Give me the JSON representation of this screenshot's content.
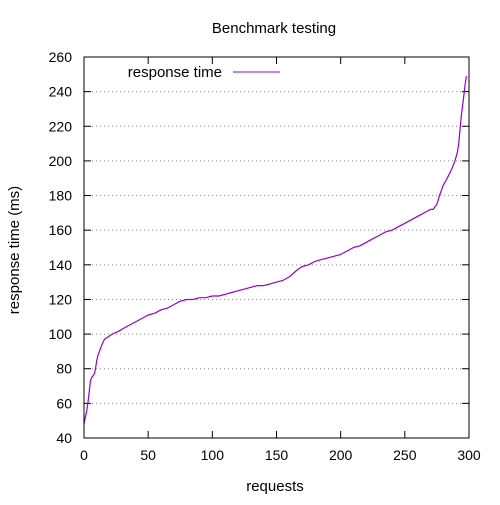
{
  "chart_data": {
    "type": "line",
    "title": "Benchmark testing",
    "xlabel": "requests",
    "ylabel": "response time (ms)",
    "xlim": [
      0,
      300
    ],
    "ylim": [
      40,
      260
    ],
    "xticks": [
      0,
      50,
      100,
      150,
      200,
      250,
      300
    ],
    "yticks": [
      40,
      60,
      80,
      100,
      120,
      140,
      160,
      180,
      200,
      220,
      240,
      260
    ],
    "grid": "horizontal-dotted",
    "legend_position": "top-left",
    "series": [
      {
        "name": "response time",
        "color": "#9400d3",
        "x": [
          0,
          1,
          2,
          3,
          4,
          5,
          6,
          7,
          8,
          9,
          10,
          11,
          12,
          14,
          16,
          18,
          20,
          22,
          25,
          28,
          30,
          35,
          40,
          45,
          50,
          55,
          60,
          65,
          70,
          75,
          80,
          85,
          90,
          95,
          100,
          105,
          110,
          115,
          120,
          125,
          130,
          135,
          140,
          145,
          150,
          155,
          160,
          163,
          166,
          170,
          175,
          180,
          185,
          190,
          195,
          200,
          205,
          210,
          215,
          220,
          225,
          230,
          235,
          240,
          245,
          250,
          255,
          260,
          265,
          270,
          272,
          275,
          277,
          280,
          283,
          285,
          287,
          289,
          291,
          292,
          293,
          294,
          295,
          296,
          297,
          298
        ],
        "y": [
          48,
          52,
          55,
          60,
          66,
          73,
          75,
          76,
          77,
          80,
          85,
          88,
          90,
          94,
          97,
          98,
          99,
          100,
          101,
          102,
          103,
          105,
          107,
          109,
          111,
          112,
          114,
          115,
          117,
          119,
          120,
          120,
          121,
          121,
          122,
          122,
          123,
          124,
          125,
          126,
          127,
          128,
          128,
          129,
          130,
          131,
          133,
          135,
          137,
          139,
          140,
          142,
          143,
          144,
          145,
          146,
          148,
          150,
          151,
          153,
          155,
          157,
          159,
          160,
          162,
          164,
          166,
          168,
          170,
          172,
          172,
          175,
          180,
          186,
          190,
          193,
          196,
          200,
          205,
          210,
          218,
          226,
          232,
          238,
          244,
          249
        ]
      }
    ]
  }
}
